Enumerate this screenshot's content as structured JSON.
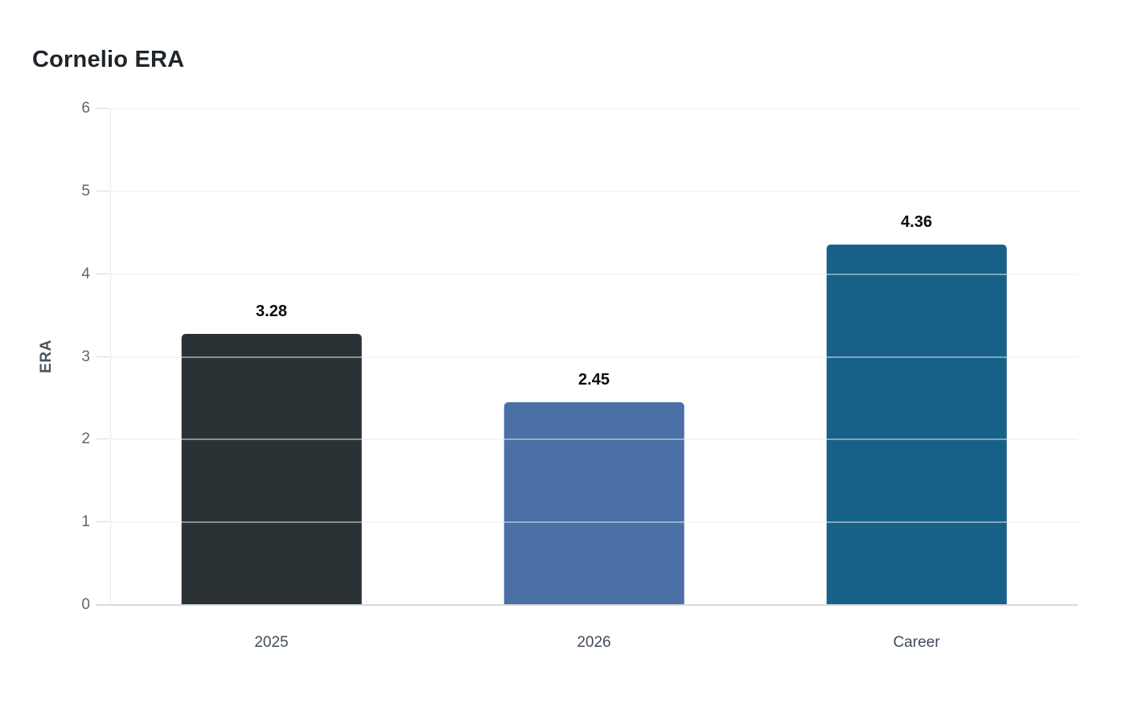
{
  "page": {
    "background": "#ffffff"
  },
  "chart_data": {
    "type": "bar",
    "title": "Cornelio ERA",
    "categories": [
      "2025",
      "2026",
      "Career"
    ],
    "values": [
      3.28,
      2.45,
      4.36
    ],
    "value_labels": [
      "3.28",
      "2.45",
      "4.36"
    ],
    "bar_colors": [
      "#2b3236",
      "#4a70a6",
      "#176188"
    ],
    "xlabel": "",
    "ylabel": "ERA",
    "ylim": [
      0,
      6
    ],
    "yticks": [
      0,
      1,
      2,
      3,
      4,
      5,
      6
    ],
    "grid": "horizontal",
    "legend": "none",
    "colors": {
      "title_text": "#1f252a",
      "value_label_text": "#0c0c0c",
      "axis_tick_text": "#5d6670",
      "x_tick_text": "#404c58",
      "y_axis_title_text": "#49545e",
      "gridline": "#ececec",
      "baseline": "#d9d9d9",
      "background": "#ffffff"
    }
  }
}
